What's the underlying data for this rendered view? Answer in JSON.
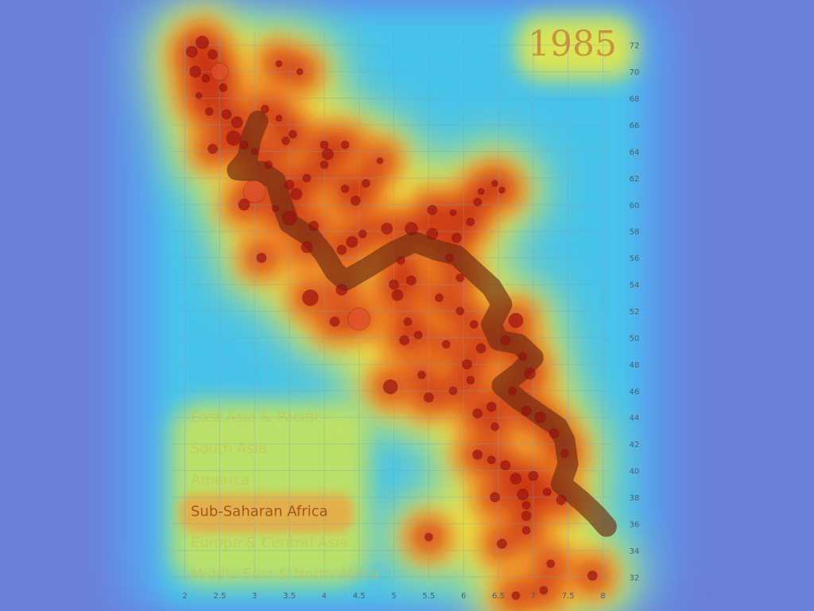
{
  "chart_data": {
    "type": "scatter",
    "title": "1985",
    "xlabel": "",
    "ylabel": "",
    "xlim": [
      1.8,
      8.2
    ],
    "ylim": [
      31,
      73
    ],
    "x_ticks": [
      "2",
      "2.5",
      "3",
      "3.5",
      "4",
      "4.5",
      "5",
      "5.5",
      "6",
      "6.5",
      "7",
      "7.5",
      "8"
    ],
    "y_ticks": [
      "32",
      "34",
      "36",
      "38",
      "40",
      "42",
      "44",
      "46",
      "48",
      "50",
      "52",
      "54",
      "56",
      "58",
      "60",
      "62",
      "64",
      "66",
      "68",
      "70",
      "72"
    ],
    "grid": true,
    "legend": {
      "placement": "bottom-left",
      "entries": [
        "East Asia & Pacific",
        "South Asia",
        "America",
        "Sub-Saharan Africa",
        "Europe & Central Asia",
        "Middle East & North Africa"
      ]
    },
    "heat_color_scale": [
      "#5a7bd6",
      "#3fd2e8",
      "#f4ea3a",
      "#f48a2a",
      "#c21a0c"
    ],
    "trail_path": [
      [
        3.05,
        66.3
      ],
      [
        2.95,
        65.0
      ],
      [
        2.9,
        63.5
      ],
      [
        2.75,
        62.6
      ],
      [
        3.1,
        62.5
      ],
      [
        3.3,
        61.8
      ],
      [
        3.4,
        60.0
      ],
      [
        3.5,
        58.6
      ],
      [
        3.8,
        57.6
      ],
      [
        4.0,
        56.3
      ],
      [
        4.15,
        55.0
      ],
      [
        4.3,
        54.3
      ],
      [
        4.6,
        55.2
      ],
      [
        5.0,
        56.5
      ],
      [
        5.3,
        57.2
      ],
      [
        5.6,
        56.6
      ],
      [
        5.9,
        56.2
      ],
      [
        6.15,
        55.0
      ],
      [
        6.4,
        53.8
      ],
      [
        6.55,
        52.5
      ],
      [
        6.4,
        51.0
      ],
      [
        6.5,
        49.8
      ],
      [
        6.8,
        49.5
      ],
      [
        7.0,
        48.5
      ],
      [
        6.8,
        47.4
      ],
      [
        6.55,
        46.4
      ],
      [
        6.8,
        45.3
      ],
      [
        7.1,
        44.2
      ],
      [
        7.35,
        43.3
      ],
      [
        7.45,
        42.3
      ],
      [
        7.5,
        40.5
      ],
      [
        7.4,
        39.0
      ],
      [
        7.7,
        37.7
      ],
      [
        7.9,
        36.7
      ],
      [
        8.05,
        35.8
      ]
    ],
    "countries": [
      {
        "x": 2.1,
        "y": 71.5,
        "r": 7
      },
      {
        "x": 2.15,
        "y": 70.0,
        "r": 7
      },
      {
        "x": 2.25,
        "y": 72.2,
        "r": 8
      },
      {
        "x": 2.3,
        "y": 69.5,
        "r": 5
      },
      {
        "x": 2.4,
        "y": 71.3,
        "r": 6
      },
      {
        "x": 2.5,
        "y": 70.0,
        "r": 11
      },
      {
        "x": 2.55,
        "y": 68.8,
        "r": 5
      },
      {
        "x": 2.2,
        "y": 68.2,
        "r": 4
      },
      {
        "x": 2.35,
        "y": 67.0,
        "r": 5
      },
      {
        "x": 2.6,
        "y": 66.8,
        "r": 6
      },
      {
        "x": 2.75,
        "y": 66.2,
        "r": 7
      },
      {
        "x": 2.7,
        "y": 65.0,
        "r": 9
      },
      {
        "x": 2.85,
        "y": 64.5,
        "r": 5
      },
      {
        "x": 2.4,
        "y": 64.2,
        "r": 6
      },
      {
        "x": 3.0,
        "y": 64.0,
        "r": 4
      },
      {
        "x": 3.15,
        "y": 67.2,
        "r": 5
      },
      {
        "x": 3.35,
        "y": 66.5,
        "r": 4
      },
      {
        "x": 3.2,
        "y": 63.0,
        "r": 5
      },
      {
        "x": 3.0,
        "y": 61.0,
        "r": 14
      },
      {
        "x": 3.5,
        "y": 61.5,
        "r": 6
      },
      {
        "x": 3.6,
        "y": 60.8,
        "r": 7
      },
      {
        "x": 3.75,
        "y": 62.0,
        "r": 5
      },
      {
        "x": 3.5,
        "y": 59.0,
        "r": 9
      },
      {
        "x": 3.85,
        "y": 58.4,
        "r": 6
      },
      {
        "x": 4.05,
        "y": 63.8,
        "r": 7
      },
      {
        "x": 4.0,
        "y": 64.5,
        "r": 5
      },
      {
        "x": 4.3,
        "y": 61.2,
        "r": 5
      },
      {
        "x": 4.45,
        "y": 60.3,
        "r": 6
      },
      {
        "x": 4.6,
        "y": 61.6,
        "r": 5
      },
      {
        "x": 4.8,
        "y": 63.3,
        "r": 4
      },
      {
        "x": 4.4,
        "y": 57.2,
        "r": 7
      },
      {
        "x": 4.25,
        "y": 56.6,
        "r": 6
      },
      {
        "x": 4.55,
        "y": 57.8,
        "r": 5
      },
      {
        "x": 4.9,
        "y": 58.2,
        "r": 7
      },
      {
        "x": 3.75,
        "y": 56.8,
        "r": 7
      },
      {
        "x": 2.85,
        "y": 60.0,
        "r": 7
      },
      {
        "x": 3.45,
        "y": 64.8,
        "r": 5
      },
      {
        "x": 3.65,
        "y": 70.0,
        "r": 4
      },
      {
        "x": 3.35,
        "y": 70.6,
        "r": 4
      },
      {
        "x": 5.25,
        "y": 58.2,
        "r": 8
      },
      {
        "x": 5.55,
        "y": 57.8,
        "r": 7
      },
      {
        "x": 5.55,
        "y": 59.6,
        "r": 6
      },
      {
        "x": 5.85,
        "y": 59.4,
        "r": 4
      },
      {
        "x": 6.2,
        "y": 60.2,
        "r": 5
      },
      {
        "x": 6.25,
        "y": 61.0,
        "r": 4
      },
      {
        "x": 6.1,
        "y": 58.7,
        "r": 5
      },
      {
        "x": 6.45,
        "y": 61.6,
        "r": 4
      },
      {
        "x": 6.55,
        "y": 61.1,
        "r": 4
      },
      {
        "x": 5.1,
        "y": 55.8,
        "r": 5
      },
      {
        "x": 5.25,
        "y": 54.3,
        "r": 6
      },
      {
        "x": 5.8,
        "y": 56.0,
        "r": 5
      },
      {
        "x": 5.95,
        "y": 54.5,
        "r": 5
      },
      {
        "x": 5.0,
        "y": 54.0,
        "r": 6
      },
      {
        "x": 5.05,
        "y": 53.2,
        "r": 7
      },
      {
        "x": 5.2,
        "y": 51.2,
        "r": 5
      },
      {
        "x": 5.15,
        "y": 49.8,
        "r": 6
      },
      {
        "x": 5.35,
        "y": 50.2,
        "r": 5
      },
      {
        "x": 5.75,
        "y": 49.5,
        "r": 5
      },
      {
        "x": 6.05,
        "y": 48.0,
        "r": 6
      },
      {
        "x": 6.1,
        "y": 46.8,
        "r": 5
      },
      {
        "x": 5.85,
        "y": 46.0,
        "r": 5
      },
      {
        "x": 5.4,
        "y": 47.2,
        "r": 5
      },
      {
        "x": 6.25,
        "y": 49.2,
        "r": 6
      },
      {
        "x": 6.75,
        "y": 51.3,
        "r": 9
      },
      {
        "x": 6.6,
        "y": 49.8,
        "r": 6
      },
      {
        "x": 6.85,
        "y": 48.6,
        "r": 5
      },
      {
        "x": 6.95,
        "y": 47.3,
        "r": 7
      },
      {
        "x": 6.7,
        "y": 46.0,
        "r": 5
      },
      {
        "x": 6.4,
        "y": 44.8,
        "r": 6
      },
      {
        "x": 6.2,
        "y": 44.3,
        "r": 6
      },
      {
        "x": 6.45,
        "y": 43.3,
        "r": 5
      },
      {
        "x": 6.9,
        "y": 44.5,
        "r": 6
      },
      {
        "x": 7.1,
        "y": 44.0,
        "r": 7
      },
      {
        "x": 7.3,
        "y": 42.8,
        "r": 6
      },
      {
        "x": 7.45,
        "y": 41.3,
        "r": 5
      },
      {
        "x": 6.2,
        "y": 41.2,
        "r": 6
      },
      {
        "x": 6.4,
        "y": 40.8,
        "r": 5
      },
      {
        "x": 6.6,
        "y": 40.4,
        "r": 6
      },
      {
        "x": 6.75,
        "y": 39.4,
        "r": 7
      },
      {
        "x": 7.0,
        "y": 39.6,
        "r": 6
      },
      {
        "x": 6.85,
        "y": 38.2,
        "r": 7
      },
      {
        "x": 6.9,
        "y": 37.4,
        "r": 5
      },
      {
        "x": 6.9,
        "y": 36.6,
        "r": 6
      },
      {
        "x": 7.2,
        "y": 38.4,
        "r": 5
      },
      {
        "x": 7.4,
        "y": 37.8,
        "r": 6
      },
      {
        "x": 6.45,
        "y": 38.0,
        "r": 6
      },
      {
        "x": 6.9,
        "y": 35.5,
        "r": 5
      },
      {
        "x": 6.55,
        "y": 34.5,
        "r": 6
      },
      {
        "x": 7.25,
        "y": 33.0,
        "r": 5
      },
      {
        "x": 6.75,
        "y": 30.6,
        "r": 5
      },
      {
        "x": 7.15,
        "y": 31.0,
        "r": 5
      },
      {
        "x": 7.85,
        "y": 32.1,
        "r": 6
      },
      {
        "x": 4.95,
        "y": 46.3,
        "r": 9
      },
      {
        "x": 5.5,
        "y": 45.5,
        "r": 6
      },
      {
        "x": 4.25,
        "y": 53.6,
        "r": 7
      },
      {
        "x": 3.8,
        "y": 53.0,
        "r": 10
      },
      {
        "x": 4.5,
        "y": 51.4,
        "r": 14
      },
      {
        "x": 4.15,
        "y": 51.2,
        "r": 6
      },
      {
        "x": 5.5,
        "y": 35.0,
        "r": 5
      },
      {
        "x": 3.1,
        "y": 56.0,
        "r": 6
      },
      {
        "x": 4.0,
        "y": 63.0,
        "r": 5
      },
      {
        "x": 3.55,
        "y": 65.3,
        "r": 5
      },
      {
        "x": 4.3,
        "y": 64.5,
        "r": 5
      },
      {
        "x": 3.3,
        "y": 59.7,
        "r": 4
      },
      {
        "x": 5.95,
        "y": 52.0,
        "r": 5
      },
      {
        "x": 6.15,
        "y": 51.0,
        "r": 5
      },
      {
        "x": 5.65,
        "y": 53.0,
        "r": 5
      },
      {
        "x": 5.9,
        "y": 57.5,
        "r": 6
      }
    ]
  }
}
